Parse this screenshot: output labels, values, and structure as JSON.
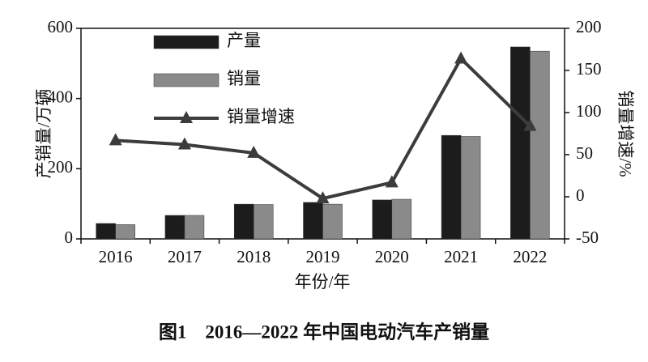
{
  "chart_data": {
    "type": "bar",
    "caption": "图1　2016—2022 年中国电动汽车产销量",
    "x_label": "年份/年",
    "y_label": "产销量/万辆",
    "y2_label": "销量增速/%",
    "categories": [
      "2016",
      "2017",
      "2018",
      "2019",
      "2020",
      "2021",
      "2022"
    ],
    "series": [
      {
        "name": "产量",
        "type": "bar",
        "color": "#1c1c1c",
        "values": [
          44,
          67,
          99,
          104,
          111,
          295,
          547
        ]
      },
      {
        "name": "销量",
        "type": "bar",
        "color": "#8a8a8a",
        "values": [
          41,
          67,
          98,
          99,
          113,
          292,
          535
        ]
      },
      {
        "name": "销量增速",
        "type": "line",
        "axis": "y2",
        "color": "#3c3c3c",
        "values": [
          67,
          62,
          52,
          -2,
          17,
          164,
          84
        ]
      }
    ],
    "ylim": [
      0,
      600
    ],
    "yticks": [
      0,
      200,
      400,
      600
    ],
    "y2lim": [
      -50,
      200
    ],
    "y2ticks": [
      -50,
      0,
      50,
      100,
      150,
      200
    ],
    "legend": "top-left"
  }
}
